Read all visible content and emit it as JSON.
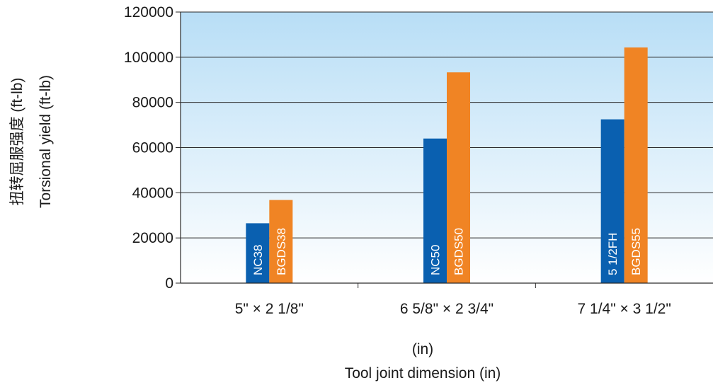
{
  "chart_data": {
    "type": "bar",
    "categories": [
      "5\" × 2 1/8\"",
      "6 5/8\" × 2 3/4\"",
      "7 1/4\" × 3 1/2\""
    ],
    "series": [
      {
        "values": [
          26500,
          64000,
          72500
        ],
        "bar_labels": [
          "NC38",
          "NC50",
          "5 1/2FH"
        ],
        "color": "#0a60b0"
      },
      {
        "values": [
          36800,
          93300,
          104300
        ],
        "bar_labels": [
          "BGDS38",
          "BGDS50",
          "BGDS55"
        ],
        "color": "#f08424"
      }
    ],
    "ylabel": [
      "扭转屈服强度 (ft-lb)",
      "Torsional yield (ft-lb)"
    ],
    "xlabel": [
      "(in)",
      "Tool joint dimension (in)"
    ],
    "ylim": [
      0,
      120000
    ],
    "yticks": [
      0,
      20000,
      40000,
      60000,
      80000,
      100000,
      120000
    ],
    "grid": true,
    "background_gradient": [
      "#b8def6",
      "#ffffff"
    ]
  }
}
